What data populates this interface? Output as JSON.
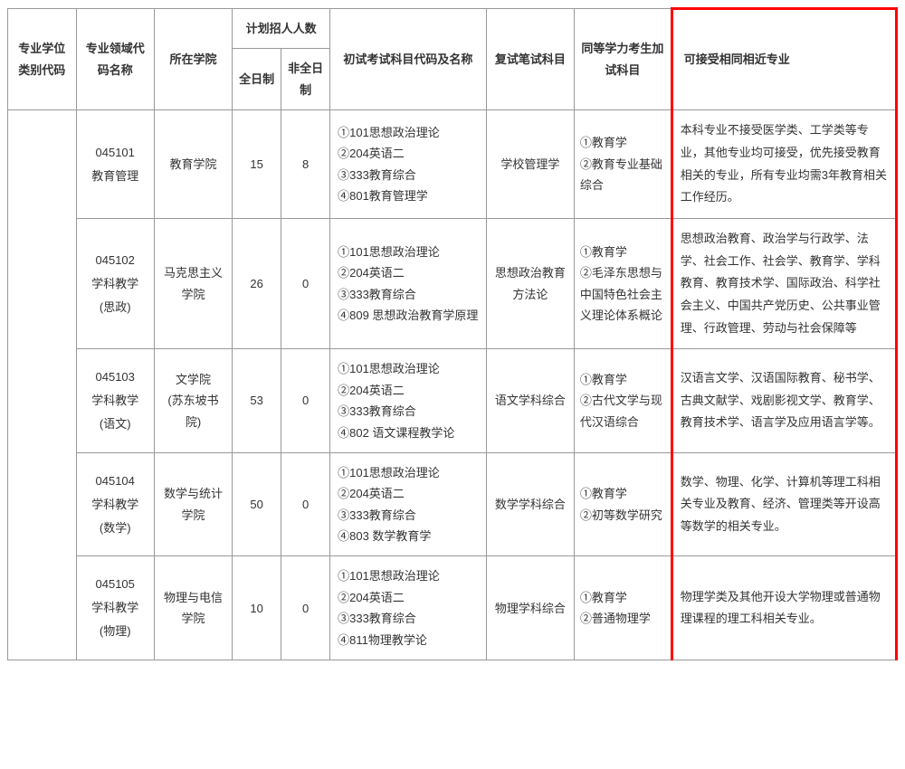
{
  "headers": {
    "col1": "专业学位类别代码",
    "col2": "专业领域代码名称",
    "col3": "所在学院",
    "col_plan": "计划招人人数",
    "col4": "全日制",
    "col5": "非全日制",
    "col6": "初试考试科目代码及名称",
    "col7": "复试笔试科目",
    "col8": "同等学力考生加试科目",
    "col9": "可接受相同相近专业"
  },
  "rows": [
    {
      "major": "045101\n教育管理",
      "college": "教育学院",
      "fulltime": "15",
      "parttime": "8",
      "exam": "①101思想政治理论\n②204英语二\n③333教育综合\n④801教育管理学",
      "fushi": "学校管理学",
      "jiashi": "①教育学\n②教育专业基础综合",
      "jieshou": "本科专业不接受医学类、工学类等专业，其他专业均可接受，优先接受教育相关的专业，所有专业均需3年教育相关工作经历。"
    },
    {
      "major": "045102\n学科教学\n(思政)",
      "college": "马克思主义学院",
      "fulltime": "26",
      "parttime": "0",
      "exam": "①101思想政治理论\n②204英语二\n③333教育综合\n④809 思想政治教育学原理",
      "fushi": "思想政治教育方法论",
      "jiashi": "①教育学\n②毛泽东思想与中国特色社会主义理论体系概论",
      "jieshou": "思想政治教育、政治学与行政学、法学、社会工作、社会学、教育学、学科教育、教育技术学、国际政治、科学社会主义、中国共产党历史、公共事业管理、行政管理、劳动与社会保障等"
    },
    {
      "major": "045103\n学科教学\n(语文)",
      "college": "文学院\n(苏东坡书院)",
      "fulltime": "53",
      "parttime": "0",
      "exam": "①101思想政治理论\n②204英语二\n③333教育综合\n④802 语文课程教学论",
      "fushi": "语文学科综合",
      "jiashi": "①教育学\n②古代文学与现代汉语综合",
      "jieshou": "汉语言文学、汉语国际教育、秘书学、古典文献学、戏剧影视文学、教育学、教育技术学、语言学及应用语言学等。"
    },
    {
      "major": "045104\n学科教学\n(数学)",
      "college": "数学与统计学院",
      "fulltime": "50",
      "parttime": "0",
      "exam": "①101思想政治理论\n②204英语二\n③333教育综合\n④803 数学教育学",
      "fushi": "数学学科综合",
      "jiashi": "①教育学\n②初等数学研究",
      "jieshou": "数学、物理、化学、计算机等理工科相关专业及教育、经济、管理类等开设高等数学的相关专业。"
    },
    {
      "major": "045105\n学科教学\n(物理)",
      "college": "物理与电信学院",
      "fulltime": "10",
      "parttime": "0",
      "exam": "①101思想政治理论\n②204英语二\n③333教育综合\n④811物理教学论",
      "fushi": "物理学科综合",
      "jiashi": "①教育学\n②普通物理学",
      "jieshou": "物理学类及其他开设大学物理或普通物理课程的理工科相关专业。"
    }
  ]
}
